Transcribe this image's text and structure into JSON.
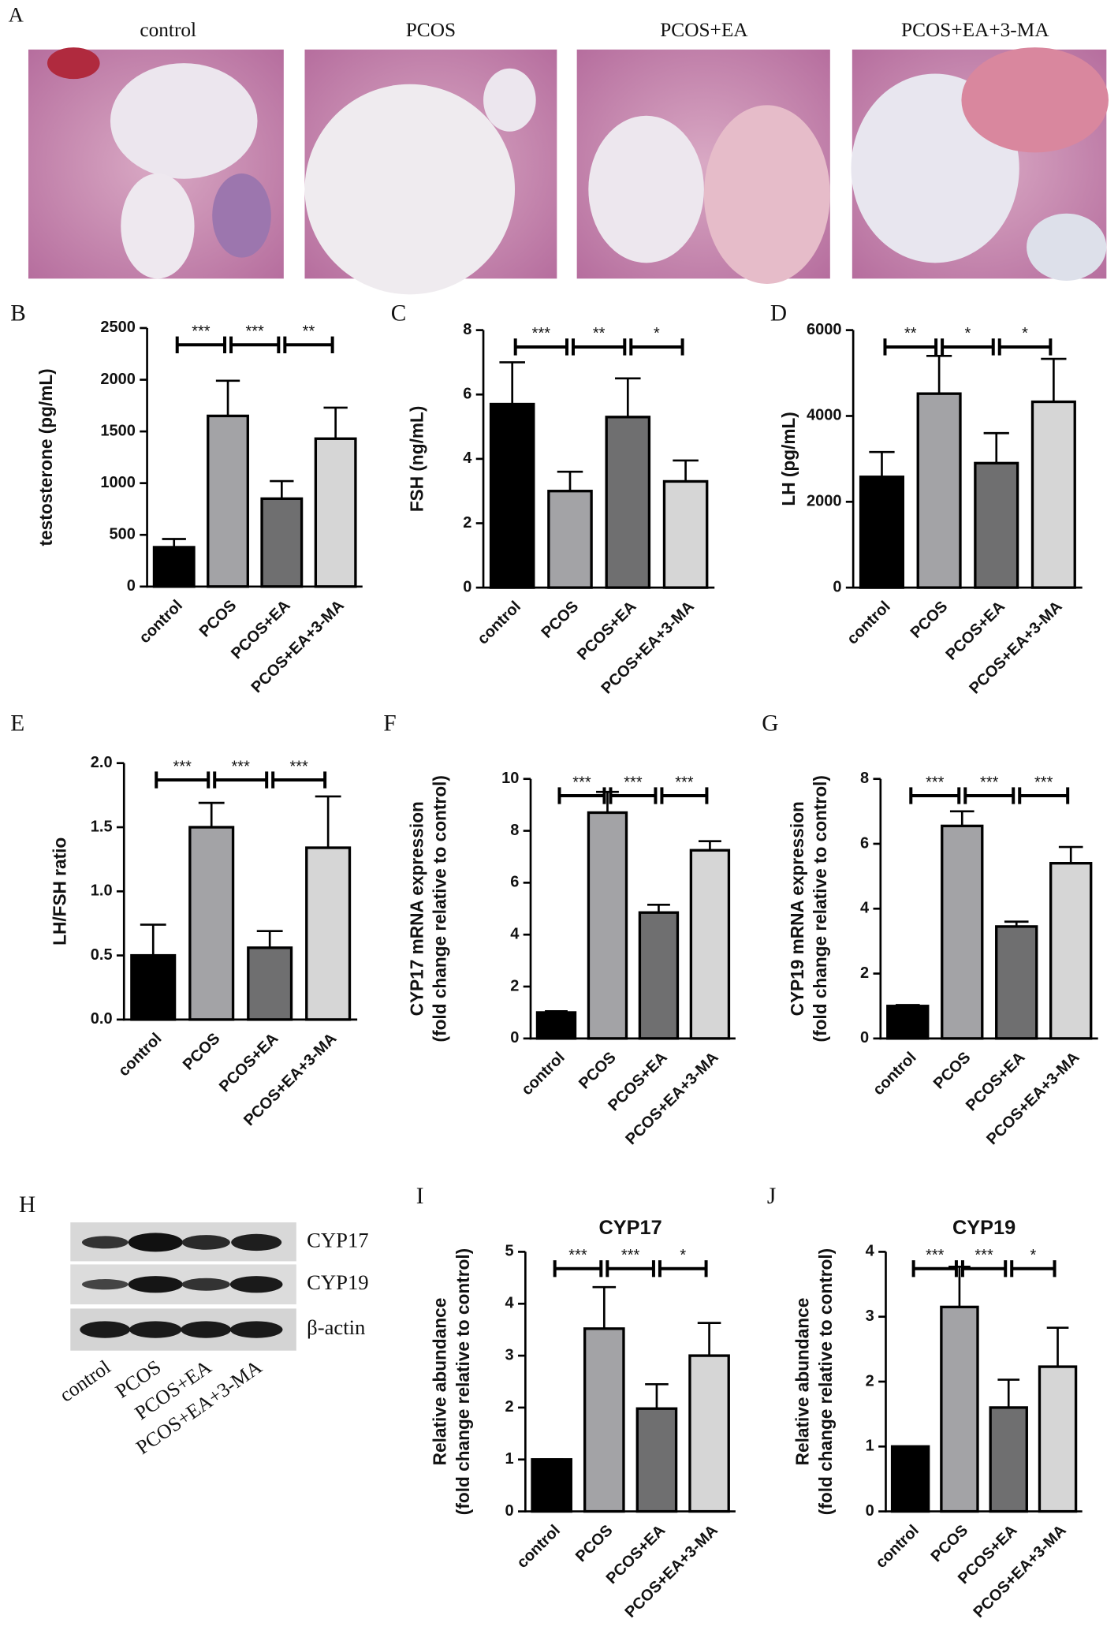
{
  "histology": {
    "panel": "A",
    "groups": [
      "control",
      "PCOS",
      "PCOS+EA",
      "PCOS+EA+3-MA"
    ]
  },
  "western_blot": {
    "panel": "H",
    "proteins": [
      "CYP17",
      "CYP19",
      "β-actin"
    ],
    "groups": [
      "control",
      "PCOS",
      "PCOS+EA",
      "PCOS+EA+3-MA"
    ]
  },
  "chart_data": [
    {
      "type": "bar",
      "panel": "B",
      "ylabel": [
        "testosterone (pg/mL)"
      ],
      "categories": [
        "control",
        "PCOS",
        "PCOS+EA",
        "PCOS+EA+3-MA"
      ],
      "values": [
        380,
        1650,
        850,
        1430
      ],
      "errors": [
        80,
        340,
        170,
        300
      ],
      "colors": [
        "#000000",
        "#a3a3a6",
        "#6f6f70",
        "#d6d6d6"
      ],
      "ylim": [
        0,
        2500
      ],
      "yticks": [
        0,
        500,
        1000,
        1500,
        2000,
        2500
      ],
      "significance": [
        {
          "from": 0,
          "to": 1,
          "label": "***"
        },
        {
          "from": 1,
          "to": 2,
          "label": "***"
        },
        {
          "from": 2,
          "to": 3,
          "label": "**"
        }
      ]
    },
    {
      "type": "bar",
      "panel": "C",
      "ylabel": [
        "FSH (ng/mL)"
      ],
      "categories": [
        "control",
        "PCOS",
        "PCOS+EA",
        "PCOS+EA+3-MA"
      ],
      "values": [
        5.7,
        3.0,
        5.3,
        3.3
      ],
      "errors": [
        1.3,
        0.6,
        1.2,
        0.65
      ],
      "colors": [
        "#000000",
        "#a3a3a6",
        "#6f6f70",
        "#d6d6d6"
      ],
      "ylim": [
        0,
        8
      ],
      "yticks": [
        0,
        2,
        4,
        6,
        8
      ],
      "significance": [
        {
          "from": 0,
          "to": 1,
          "label": "***"
        },
        {
          "from": 1,
          "to": 2,
          "label": "**"
        },
        {
          "from": 2,
          "to": 3,
          "label": "*"
        }
      ]
    },
    {
      "type": "bar",
      "panel": "D",
      "ylabel": [
        "LH (pg/mL)"
      ],
      "categories": [
        "control",
        "PCOS",
        "PCOS+EA",
        "PCOS+EA+3-MA"
      ],
      "values": [
        2580,
        4520,
        2900,
        4330
      ],
      "errors": [
        580,
        880,
        700,
        1000
      ],
      "colors": [
        "#000000",
        "#a3a3a6",
        "#6f6f70",
        "#d6d6d6"
      ],
      "ylim": [
        0,
        6000
      ],
      "yticks": [
        0,
        2000,
        4000,
        6000
      ],
      "significance": [
        {
          "from": 0,
          "to": 1,
          "label": "**"
        },
        {
          "from": 1,
          "to": 2,
          "label": "*"
        },
        {
          "from": 2,
          "to": 3,
          "label": "*"
        }
      ]
    },
    {
      "type": "bar",
      "panel": "E",
      "ylabel": [
        "LH/FSH ratio"
      ],
      "categories": [
        "control",
        "PCOS",
        "PCOS+EA",
        "PCOS+EA+3-MA"
      ],
      "values": [
        0.5,
        1.5,
        0.56,
        1.34
      ],
      "errors": [
        0.24,
        0.19,
        0.13,
        0.4
      ],
      "colors": [
        "#000000",
        "#a3a3a6",
        "#6f6f70",
        "#d6d6d6"
      ],
      "ylim": [
        0,
        2
      ],
      "yticks": [
        {
          "value": 0,
          "label": "0.0"
        },
        {
          "value": 0.5,
          "label": "0.5"
        },
        {
          "value": 1,
          "label": "1.0"
        },
        {
          "value": 1.5,
          "label": "1.5"
        },
        {
          "value": 2,
          "label": "2.0"
        }
      ],
      "significance": [
        {
          "from": 0,
          "to": 1,
          "label": "***"
        },
        {
          "from": 1,
          "to": 2,
          "label": "***"
        },
        {
          "from": 2,
          "to": 3,
          "label": "***"
        }
      ]
    },
    {
      "type": "bar",
      "panel": "F",
      "ylabel": [
        "CYP17 mRNA expression",
        "(fold change relative to control)"
      ],
      "categories": [
        "control",
        "PCOS",
        "PCOS+EA",
        "PCOS+EA+3-MA"
      ],
      "values": [
        1.0,
        8.7,
        4.85,
        7.25
      ],
      "errors": [
        0.05,
        0.8,
        0.3,
        0.35
      ],
      "colors": [
        "#000000",
        "#a3a3a6",
        "#6f6f70",
        "#d6d6d6"
      ],
      "ylim": [
        0,
        10
      ],
      "yticks": [
        0,
        2,
        4,
        6,
        8,
        10
      ],
      "significance": [
        {
          "from": 0,
          "to": 1,
          "label": "***"
        },
        {
          "from": 1,
          "to": 2,
          "label": "***"
        },
        {
          "from": 2,
          "to": 3,
          "label": "***"
        }
      ]
    },
    {
      "type": "bar",
      "panel": "G",
      "ylabel": [
        "CYP19 mRNA expression",
        "(fold change relative to control)"
      ],
      "categories": [
        "control",
        "PCOS",
        "PCOS+EA",
        "PCOS+EA+3-MA"
      ],
      "values": [
        1.0,
        6.55,
        3.45,
        5.4
      ],
      "errors": [
        0.03,
        0.45,
        0.15,
        0.5
      ],
      "colors": [
        "#000000",
        "#a3a3a6",
        "#6f6f70",
        "#d6d6d6"
      ],
      "ylim": [
        0,
        8
      ],
      "yticks": [
        0,
        2,
        4,
        6,
        8
      ],
      "significance": [
        {
          "from": 0,
          "to": 1,
          "label": "***"
        },
        {
          "from": 1,
          "to": 2,
          "label": "***"
        },
        {
          "from": 2,
          "to": 3,
          "label": "***"
        }
      ]
    },
    {
      "type": "bar",
      "panel": "I",
      "title": "CYP17",
      "ylabel": [
        "Relative abundance",
        "(fold change relative to control)"
      ],
      "categories": [
        "control",
        "PCOS",
        "PCOS+EA",
        "PCOS+EA+3-MA"
      ],
      "values": [
        1,
        3.52,
        1.98,
        3.0
      ],
      "errors": [
        0,
        0.8,
        0.47,
        0.63
      ],
      "colors": [
        "#000000",
        "#a3a3a6",
        "#6f6f70",
        "#d6d6d6"
      ],
      "ylim": [
        0,
        5
      ],
      "yticks": [
        0,
        1,
        2,
        3,
        4,
        5
      ],
      "significance": [
        {
          "from": 0,
          "to": 1,
          "label": "***"
        },
        {
          "from": 1,
          "to": 2,
          "label": "***"
        },
        {
          "from": 2,
          "to": 3,
          "label": "*"
        }
      ]
    },
    {
      "type": "bar",
      "panel": "J",
      "title": "CYP19",
      "ylabel": [
        "Relative abundance",
        "(fold change relative to control)"
      ],
      "categories": [
        "control",
        "PCOS",
        "PCOS+EA",
        "PCOS+EA+3-MA"
      ],
      "values": [
        1,
        3.15,
        1.6,
        2.23
      ],
      "errors": [
        0,
        0.62,
        0.43,
        0.6
      ],
      "colors": [
        "#000000",
        "#a3a3a6",
        "#6f6f70",
        "#d6d6d6"
      ],
      "ylim": [
        0,
        4
      ],
      "yticks": [
        0,
        1,
        2,
        3,
        4
      ],
      "significance": [
        {
          "from": 0,
          "to": 1,
          "label": "***"
        },
        {
          "from": 1,
          "to": 2,
          "label": "***"
        },
        {
          "from": 2,
          "to": 3,
          "label": "*"
        }
      ]
    }
  ]
}
